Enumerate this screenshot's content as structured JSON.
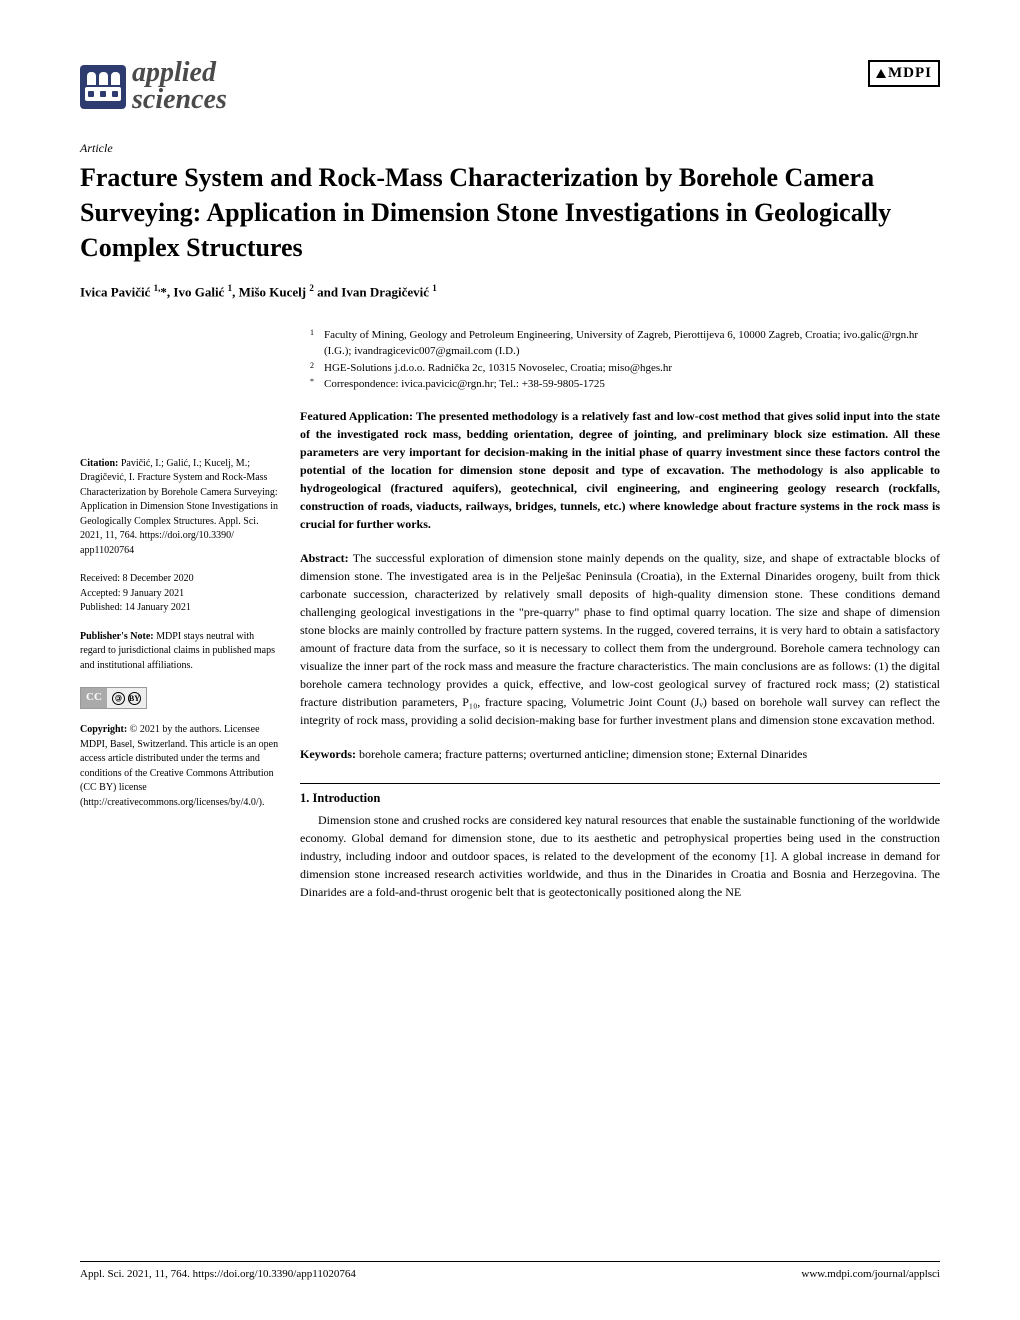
{
  "journal": {
    "name_line1": "applied",
    "name_line2": "sciences",
    "publisher": "MDPI"
  },
  "article_type": "Article",
  "title": "Fracture System and Rock-Mass Characterization by Borehole Camera Surveying: Application in Dimension Stone Investigations in Geologically Complex Structures",
  "authors_html": "Ivica Pavičić <sup>1,</sup>*, Ivo Galić <sup>1</sup>, Mišo Kucelj <sup>2</sup> and Ivan Dragičević <sup>1</sup>",
  "affiliations": [
    {
      "sup": "1",
      "text": "Faculty of Mining, Geology and Petroleum Engineering, University of Zagreb, Pierottijeva 6, 10000 Zagreb, Croatia; ivo.galic@rgn.hr (I.G.); ivandragicevic007@gmail.com (I.D.)"
    },
    {
      "sup": "2",
      "text": "HGE-Solutions j.d.o.o. Radnička 2c, 10315 Novoselec, Croatia; miso@hges.hr"
    },
    {
      "sup": "*",
      "text": "Correspondence: ivica.pavicic@rgn.hr; Tel.: +38-59-9805-1725"
    }
  ],
  "featured": "Featured Application: The presented methodology is a relatively fast and low-cost method that gives solid input into the state of the investigated rock mass, bedding orientation, degree of jointing, and preliminary block size estimation. All these parameters are very important for decision-making in the initial phase of quarry investment since these factors control the potential of the location for dimension stone deposit and type of excavation. The methodology is also applicable to hydrogeological (fractured aquifers), geotechnical, civil engineering, and engineering geology research (rockfalls, construction of roads, viaducts, railways, bridges, tunnels, etc.) where knowledge about fracture systems in the rock mass is crucial for further works.",
  "abstract_label": "Abstract:",
  "abstract": " The successful exploration of dimension stone mainly depends on the quality, size, and shape of extractable blocks of dimension stone. The investigated area is in the Pelješac Peninsula (Croatia), in the External Dinarides orogeny, built from thick carbonate succession, characterized by relatively small deposits of high-quality dimension stone. These conditions demand challenging geological investigations in the \"pre-quarry\" phase to find optimal quarry location. The size and shape of dimension stone blocks are mainly controlled by fracture pattern systems. In the rugged, covered terrains, it is very hard to obtain a satisfactory amount of fracture data from the surface, so it is necessary to collect them from the underground. Borehole camera technology can visualize the inner part of the rock mass and measure the fracture characteristics. The main conclusions are as follows: (1) the digital borehole camera technology provides a quick, effective, and low-cost geological survey of fractured rock mass; (2) statistical fracture distribution parameters, P₁₀, fracture spacing, Volumetric Joint Count (Jᵥ) based on borehole wall survey can reflect the integrity of rock mass, providing a solid decision-making base for further investment plans and dimension stone excavation method.",
  "keywords_label": "Keywords:",
  "keywords": " borehole camera; fracture patterns; overturned anticline; dimension stone; External Dinarides",
  "section1_head": "1. Introduction",
  "section1_body": "Dimension stone and crushed rocks are considered key natural resources that enable the sustainable functioning of the worldwide economy. Global demand for dimension stone, due to its aesthetic and petrophysical properties being used in the construction industry, including indoor and outdoor spaces, is related to the development of the economy [1]. A global increase in demand for dimension stone increased research activities worldwide, and thus in the Dinarides in Croatia and Bosnia and Herzegovina. The Dinarides are a fold-and-thrust orogenic belt that is geotectonically positioned along the NE",
  "sidebar": {
    "citation_label": "Citation:",
    "citation": " Pavičić, I.; Galić, I.; Kucelj, M.; Dragičević, I. Fracture System and Rock-Mass Characterization by Borehole Camera Surveying: Application in Dimension Stone Investigations in Geologically Complex Structures. Appl. Sci. 2021, 11, 764. https://doi.org/10.3390/ app11020764",
    "received": "Received: 8 December 2020",
    "accepted": "Accepted: 9 January 2021",
    "published": "Published: 14 January 2021",
    "pubnote_label": "Publisher's Note:",
    "pubnote": " MDPI stays neutral with regard to jurisdictional claims in published maps and institutional affiliations.",
    "copyright_label": "Copyright:",
    "copyright": " © 2021 by the authors. Licensee MDPI, Basel, Switzerland. This article is an open access article distributed under the terms and conditions of the Creative Commons Attribution (CC BY) license (http://creativecommons.org/licenses/by/4.0/)."
  },
  "footer": {
    "left": "Appl. Sci. 2021, 11, 764. https://doi.org/10.3390/app11020764",
    "right": "www.mdpi.com/journal/applsci"
  },
  "colors": {
    "logo_bg": "#2e3b6e",
    "text": "#000000",
    "bg": "#ffffff"
  }
}
